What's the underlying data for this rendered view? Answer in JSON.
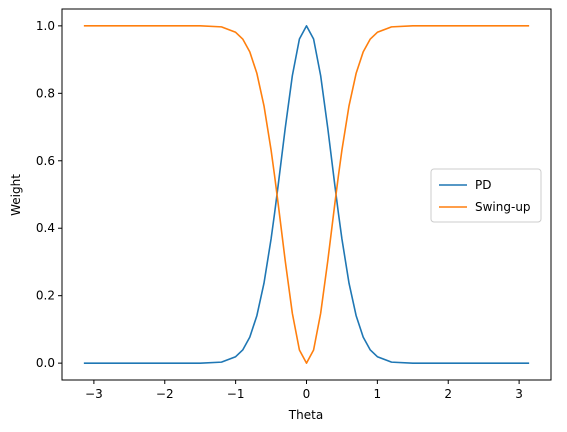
{
  "chart_data": {
    "type": "line",
    "title": "",
    "xlabel": "Theta",
    "ylabel": "Weight",
    "xlim": [
      -3.45,
      3.45
    ],
    "ylim": [
      -0.05,
      1.05
    ],
    "xticks": [
      -3,
      -2,
      -1,
      0,
      1,
      2,
      3
    ],
    "xtick_labels": [
      "−3",
      "−2",
      "−1",
      "0",
      "1",
      "2",
      "3"
    ],
    "yticks": [
      0.0,
      0.2,
      0.4,
      0.6,
      0.8,
      1.0
    ],
    "ytick_labels": [
      "0.0",
      "0.2",
      "0.4",
      "0.6",
      "0.8",
      "1.0"
    ],
    "grid": false,
    "legend_position": "center-right",
    "x": [
      -3.1416,
      -2.5,
      -2.0,
      -1.5,
      -1.2,
      -1.0,
      -0.9,
      -0.8,
      -0.7,
      -0.6,
      -0.5,
      -0.45,
      -0.4,
      -0.3,
      -0.2,
      -0.1,
      0.0,
      0.1,
      0.2,
      0.3,
      0.4,
      0.45,
      0.5,
      0.6,
      0.7,
      0.8,
      0.9,
      1.0,
      1.2,
      1.5,
      2.0,
      2.5,
      3.1416
    ],
    "series": [
      {
        "name": "PD",
        "color": "#1f77b4",
        "values": [
          0.0,
          0.0,
          0.0,
          0.0,
          0.003,
          0.019,
          0.039,
          0.077,
          0.141,
          0.237,
          0.368,
          0.445,
          0.527,
          0.697,
          0.852,
          0.961,
          1.0,
          0.961,
          0.852,
          0.697,
          0.527,
          0.445,
          0.368,
          0.237,
          0.141,
          0.077,
          0.039,
          0.019,
          0.003,
          0.0,
          0.0,
          0.0,
          0.0
        ]
      },
      {
        "name": "Swing-up",
        "color": "#ff7f0e",
        "values": [
          1.0,
          1.0,
          1.0,
          1.0,
          0.997,
          0.981,
          0.961,
          0.923,
          0.859,
          0.763,
          0.632,
          0.555,
          0.473,
          0.303,
          0.148,
          0.039,
          0.0,
          0.039,
          0.148,
          0.303,
          0.473,
          0.555,
          0.632,
          0.763,
          0.859,
          0.923,
          0.961,
          0.981,
          0.997,
          1.0,
          1.0,
          1.0,
          1.0
        ]
      }
    ]
  }
}
